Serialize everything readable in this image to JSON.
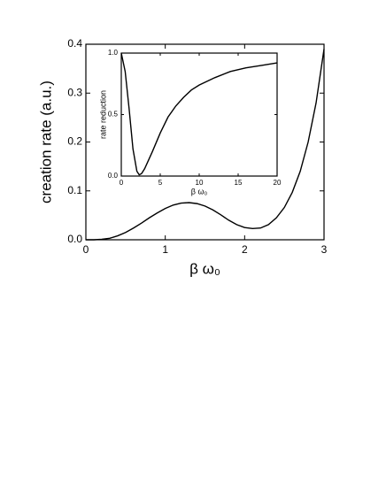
{
  "chart_data": [
    {
      "type": "line",
      "xlabel": "β ω₀",
      "ylabel": "creation rate (a.u.)",
      "xlim": [
        0,
        3
      ],
      "xticks": [
        0,
        1,
        2,
        3
      ],
      "ylim": [
        0,
        0.4
      ],
      "yticks": [
        {
          "value": 0,
          "label": "0.0"
        },
        0.1,
        0.2,
        0.3,
        0.4
      ],
      "x": [
        0,
        0.1,
        0.2,
        0.3,
        0.4,
        0.5,
        0.6,
        0.7,
        0.8,
        0.9,
        1.0,
        1.1,
        1.2,
        1.3,
        1.4,
        1.5,
        1.6,
        1.7,
        1.8,
        1.9,
        2.0,
        2.1,
        2.2,
        2.3,
        2.4,
        2.5,
        2.6,
        2.7,
        2.8,
        2.9,
        3.0
      ],
      "series": [
        {
          "color": "#000000",
          "values": [
            0,
            0,
            0.001,
            0.003,
            0.008,
            0.015,
            0.024,
            0.034,
            0.045,
            0.055,
            0.064,
            0.071,
            0.075,
            0.076,
            0.074,
            0.069,
            0.061,
            0.051,
            0.04,
            0.031,
            0.025,
            0.023,
            0.024,
            0.031,
            0.045,
            0.066,
            0.097,
            0.14,
            0.2,
            0.28,
            0.39
          ]
        }
      ]
    },
    {
      "type": "line",
      "xlabel": "β ω₀",
      "ylabel": "rate reduction",
      "xlim": [
        0,
        20
      ],
      "xticks": [
        0,
        5,
        10,
        15,
        20
      ],
      "ylim": [
        0,
        1
      ],
      "yticks": [
        {
          "value": 0,
          "label": "0.0"
        },
        0.5,
        {
          "value": 1,
          "label": "1.0"
        }
      ],
      "x": [
        0,
        0.5,
        1,
        1.5,
        2,
        2.3,
        2.6,
        3,
        4,
        5,
        6,
        7,
        8,
        9,
        10,
        12,
        14,
        16,
        18,
        20
      ],
      "series": [
        {
          "color": "#000000",
          "values": [
            1.0,
            0.85,
            0.55,
            0.22,
            0.04,
            0.01,
            0.02,
            0.06,
            0.2,
            0.35,
            0.48,
            0.57,
            0.64,
            0.7,
            0.74,
            0.8,
            0.85,
            0.88,
            0.9,
            0.92
          ]
        }
      ]
    }
  ]
}
